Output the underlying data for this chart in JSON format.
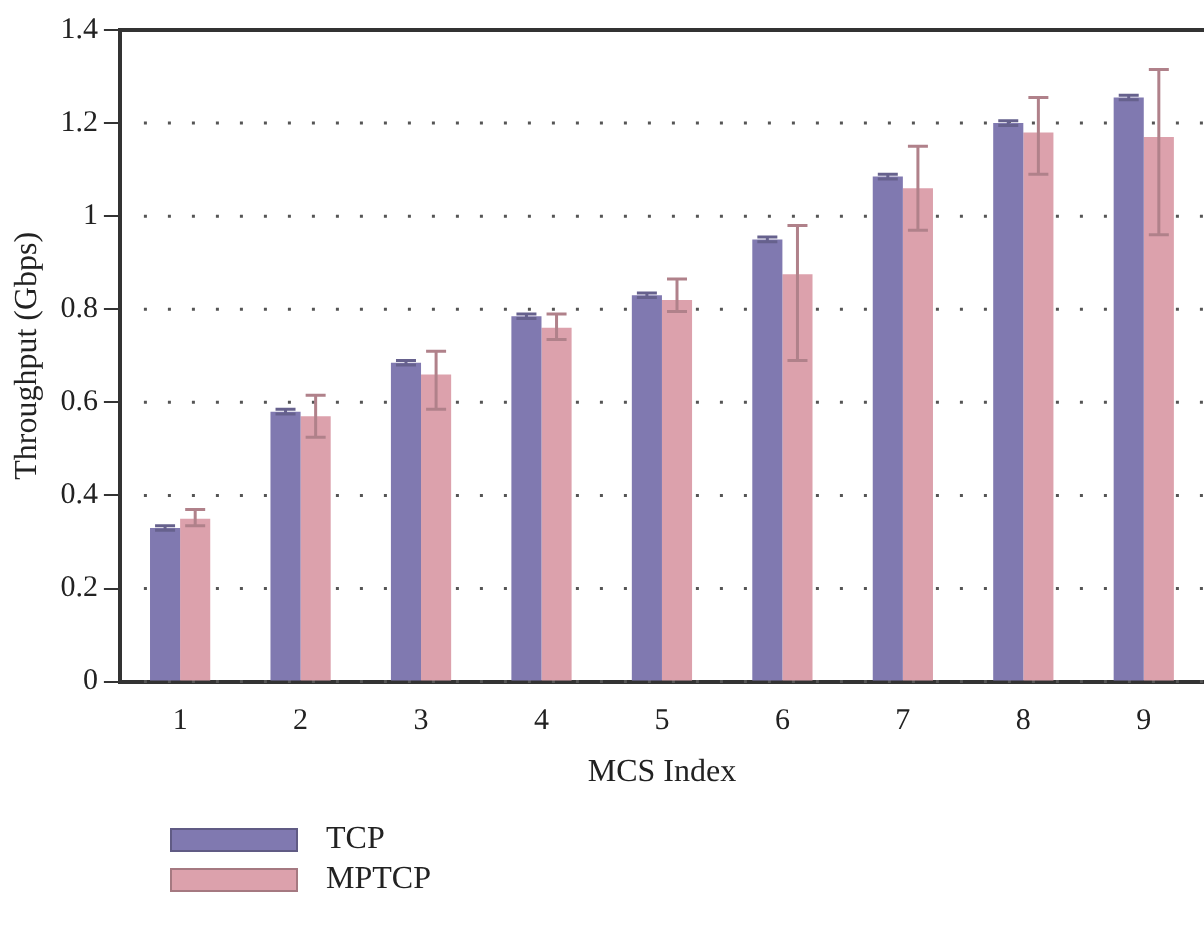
{
  "chart_data": {
    "type": "bar",
    "xlabel": "MCS Index",
    "ylabel": "Throughput (Gbps)",
    "categories": [
      "1",
      "2",
      "3",
      "4",
      "5",
      "6",
      "7",
      "8",
      "9"
    ],
    "series": [
      {
        "name": "TCP",
        "color": "#8079b0",
        "values": [
          0.33,
          0.58,
          0.685,
          0.785,
          0.83,
          0.95,
          1.085,
          1.2,
          1.255
        ],
        "errors": [
          0.005,
          0.005,
          0.005,
          0.005,
          0.005,
          0.005,
          0.005,
          0.005,
          0.005
        ]
      },
      {
        "name": "MPTCP",
        "color": "#dca1ac",
        "values": [
          0.35,
          0.57,
          0.66,
          0.76,
          0.82,
          0.875,
          1.06,
          1.18,
          1.17
        ],
        "errors": [
          [
            0.335,
            0.37
          ],
          [
            0.525,
            0.615
          ],
          [
            0.585,
            0.71
          ],
          [
            0.735,
            0.79
          ],
          [
            0.795,
            0.865
          ],
          [
            0.69,
            0.98
          ],
          [
            0.97,
            1.15
          ],
          [
            1.09,
            1.255
          ],
          [
            0.96,
            1.315
          ]
        ]
      }
    ],
    "ylim": [
      0,
      1.4
    ],
    "yticks": [
      0,
      0.2,
      0.4,
      0.6,
      0.8,
      1,
      1.2,
      1.4
    ],
    "grid": "y",
    "legend": "bottom left"
  }
}
